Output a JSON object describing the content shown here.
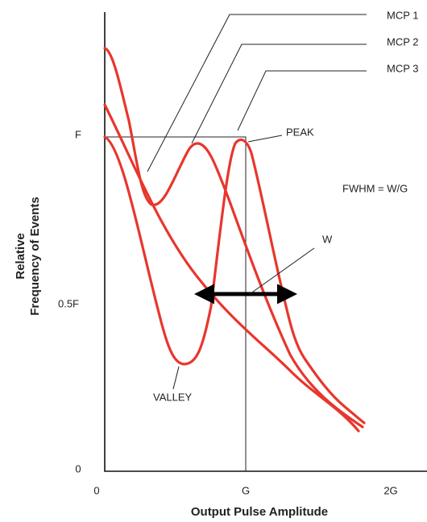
{
  "y_axis": {
    "title_lines": [
      "Relative",
      "Frequency of Events"
    ],
    "ticks": [
      "F",
      "0.5F",
      "0"
    ]
  },
  "x_axis": {
    "title": "Output Pulse Amplitude",
    "ticks": [
      "0",
      "G",
      "2G"
    ]
  },
  "curve_labels": [
    "MCP 1",
    "MCP 2",
    "MCP 3"
  ],
  "annotations": {
    "peak": "PEAK",
    "valley": "VALLEY",
    "width": "W",
    "formula": "FWHM = W/G"
  }
}
